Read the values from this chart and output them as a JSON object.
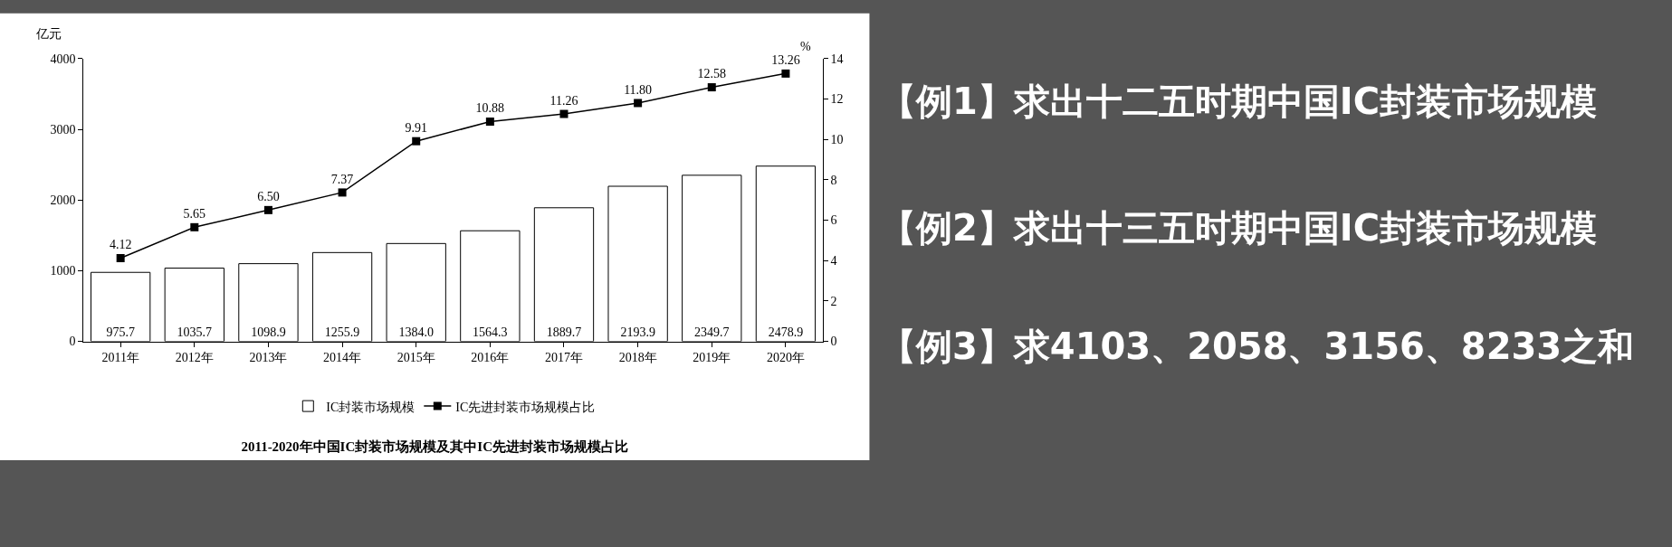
{
  "chart_data": {
    "type": "bar",
    "title": "2011-2020年中国IC封装市场规模及其中IC先进封装市场规模占比",
    "ylabel": "亿元",
    "y2label": "%",
    "categories": [
      "2011年",
      "2012年",
      "2013年",
      "2014年",
      "2015年",
      "2016年",
      "2017年",
      "2018年",
      "2019年",
      "2020年"
    ],
    "series": [
      {
        "name": "IC封装市场规模",
        "color": "#ffffff",
        "values": [
          975.7,
          1035.7,
          1098.9,
          1255.9,
          1384.0,
          1564.3,
          1889.7,
          2193.9,
          2349.7,
          2478.9
        ],
        "value_labels": [
          "975.7",
          "1035.7",
          "1098.9",
          "1255.9",
          "1384.0",
          "1564.3",
          "1889.7",
          "2193.9",
          "2349.7",
          "2478.9"
        ]
      },
      {
        "name": "IC先进封装市场规模占比",
        "type": "line",
        "axis": "y2",
        "color": "#000000",
        "marker": "square",
        "values": [
          4.12,
          5.65,
          6.5,
          7.37,
          9.91,
          10.88,
          11.26,
          11.8,
          12.58,
          13.26
        ],
        "value_labels": [
          "4.12",
          "5.65",
          "6.50",
          "7.37",
          "9.91",
          "10.88",
          "11.26",
          "11.80",
          "12.58",
          "13.26"
        ]
      }
    ],
    "ylim": [
      0,
      4000
    ],
    "yticks": [
      0,
      1000,
      2000,
      3000,
      4000
    ],
    "y2lim": [
      0,
      14
    ],
    "y2ticks": [
      0,
      2,
      4,
      6,
      8,
      10,
      12,
      14
    ],
    "legend": "bottom",
    "annotations": [
      "【例1】求出十二五时期中国IC封装市场规模",
      "【例2】求出十三五时期中国IC封装市场规模",
      "【例3】求4103、2058、3156、8233之和"
    ]
  }
}
